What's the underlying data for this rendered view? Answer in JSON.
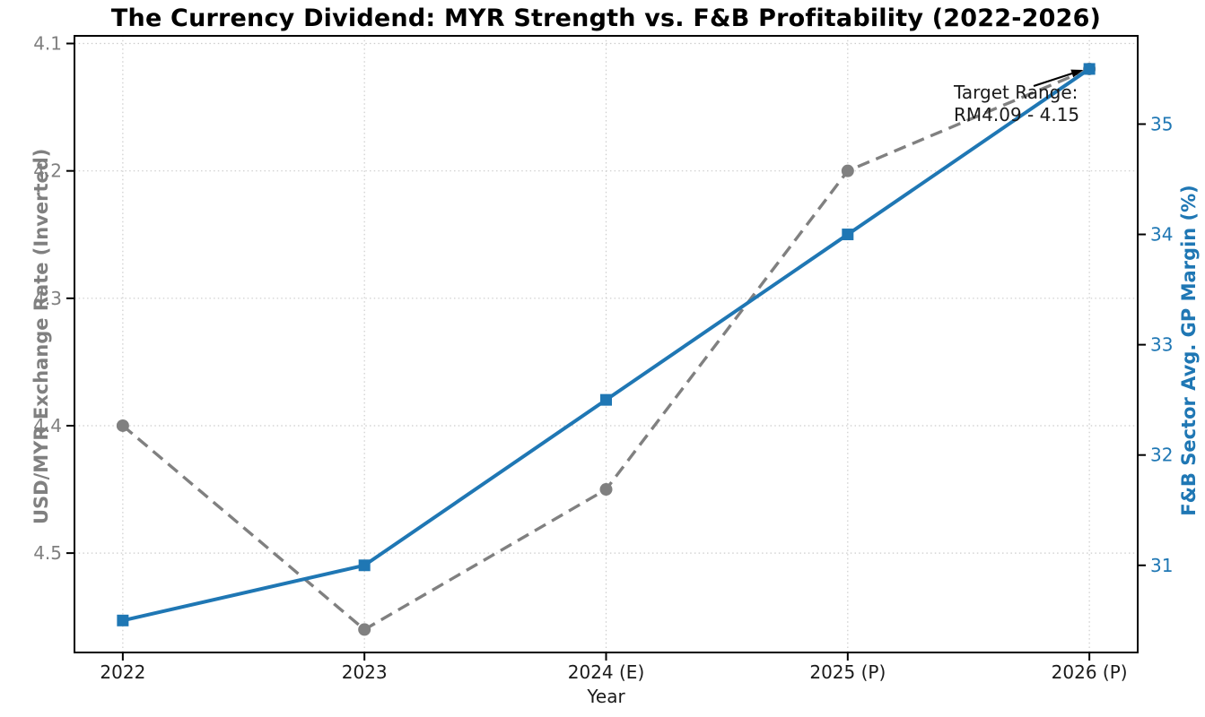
{
  "chart_data": {
    "type": "line",
    "title": "The Currency Dividend: MYR Strength vs. F&B Profitability (2022-2026)",
    "xlabel": "Year",
    "categories": [
      "2022",
      "2023",
      "2024 (E)",
      "2025 (P)",
      "2026 (P)"
    ],
    "series": [
      {
        "name": "USD/MYR Exchange Rate (Inverted)",
        "axis": "left",
        "values": [
          4.4,
          4.56,
          4.45,
          4.2,
          4.12
        ],
        "color": "#808080",
        "line_style": "dashed",
        "marker": "circle"
      },
      {
        "name": "F&B Sector Avg. GP Margin (%)",
        "axis": "right",
        "values": [
          30.5,
          31.0,
          32.5,
          34.0,
          35.5
        ],
        "color": "#1f77b4",
        "line_style": "solid",
        "marker": "square"
      }
    ],
    "left_axis": {
      "label": "USD/MYR Exchange Rate (Inverted)",
      "ticks": [
        4.1,
        4.2,
        4.3,
        4.4,
        4.5
      ],
      "tick_decimals": 1,
      "inverted": true,
      "ylim_bottom_to_top": [
        4.578,
        4.094
      ],
      "color": "#808080"
    },
    "right_axis": {
      "label": "F&B Sector Avg. GP Margin (%)",
      "ticks": [
        31,
        32,
        33,
        34,
        35
      ],
      "tick_decimals": 0,
      "ylim_bottom_to_top": [
        30.21,
        35.8
      ],
      "color": "#1f77b4"
    },
    "x_tick_color": "#1a1a1a",
    "grid": "dotted",
    "grid_color": "#cccccc",
    "spine_color": "#000000",
    "annotation": {
      "line1": "Target Range:",
      "line2": "RM4.09 - 4.15",
      "color": "#1a1a1a",
      "arrow_color": "#000000",
      "points_to": "2026 (P) exchange-rate point"
    }
  }
}
